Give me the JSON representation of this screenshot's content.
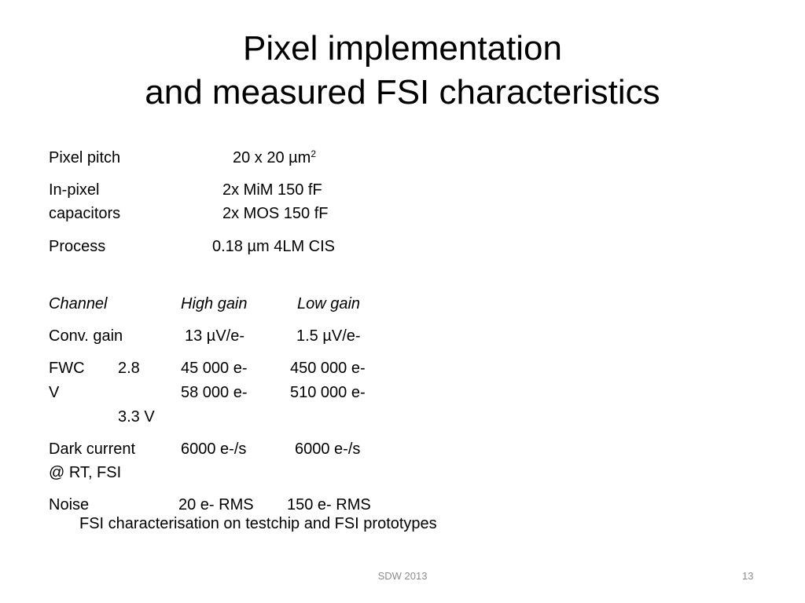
{
  "slide": {
    "title_line1": "Pixel implementation",
    "title_line2": "and measured FSI characteristics",
    "specs": [
      {
        "label": "Pixel pitch",
        "value": "20 x 20 µm",
        "value_sup": "2"
      },
      {
        "label_line1": "In-pixel",
        "label_line2": "capacitors",
        "value_line1": "2x MiM 150 fF",
        "value_line2": "2x MOS 150 fF"
      },
      {
        "label": "Process",
        "value": "0.18 µm 4LM CIS"
      }
    ],
    "channel_table": {
      "headers": [
        "Channel",
        "High gain",
        "Low gain"
      ],
      "conv_gain": {
        "label": "Conv. gain",
        "high": "13 µV/e-",
        "low": "1.5 µV/e-"
      },
      "fwc": {
        "label_a": "FWC",
        "label_b": "2.8",
        "label_c": "V",
        "label_d": "3.3 V",
        "high_1": "45 000 e-",
        "low_1": "450 000 e-",
        "high_2": "58 000 e-",
        "low_2": "510 000 e-"
      },
      "dark_current": {
        "label_line1": "Dark current",
        "label_line2": "@ RT, FSI",
        "high": "6000 e-/s",
        "low": "6000 e-/s"
      },
      "noise": {
        "label": "Noise",
        "high": "20 e- RMS",
        "low": "150 e- RMS"
      }
    },
    "caption": "FSI characterisation on testchip and FSI prototypes",
    "footer_center": "SDW 2013",
    "page_number": "13"
  }
}
